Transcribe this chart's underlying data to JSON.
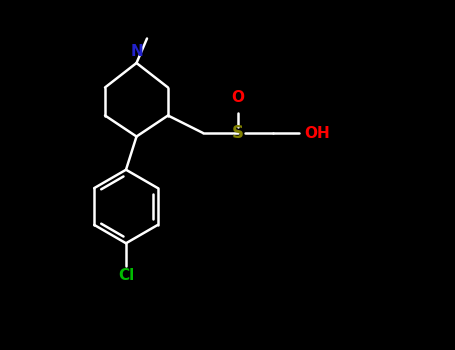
{
  "bg_color": "#000000",
  "bond_color": "#ffffff",
  "N_color": "#2222cc",
  "O_color": "#ff0000",
  "S_color": "#808000",
  "Cl_color": "#00bb00",
  "OH_color": "#ff0000",
  "lw": 1.8,
  "figsize": [
    4.55,
    3.5
  ],
  "dpi": 100,
  "xlim": [
    0,
    10
  ],
  "ylim": [
    0,
    10
  ],
  "font_size_atom": 11,
  "font_size_methyl": 9
}
